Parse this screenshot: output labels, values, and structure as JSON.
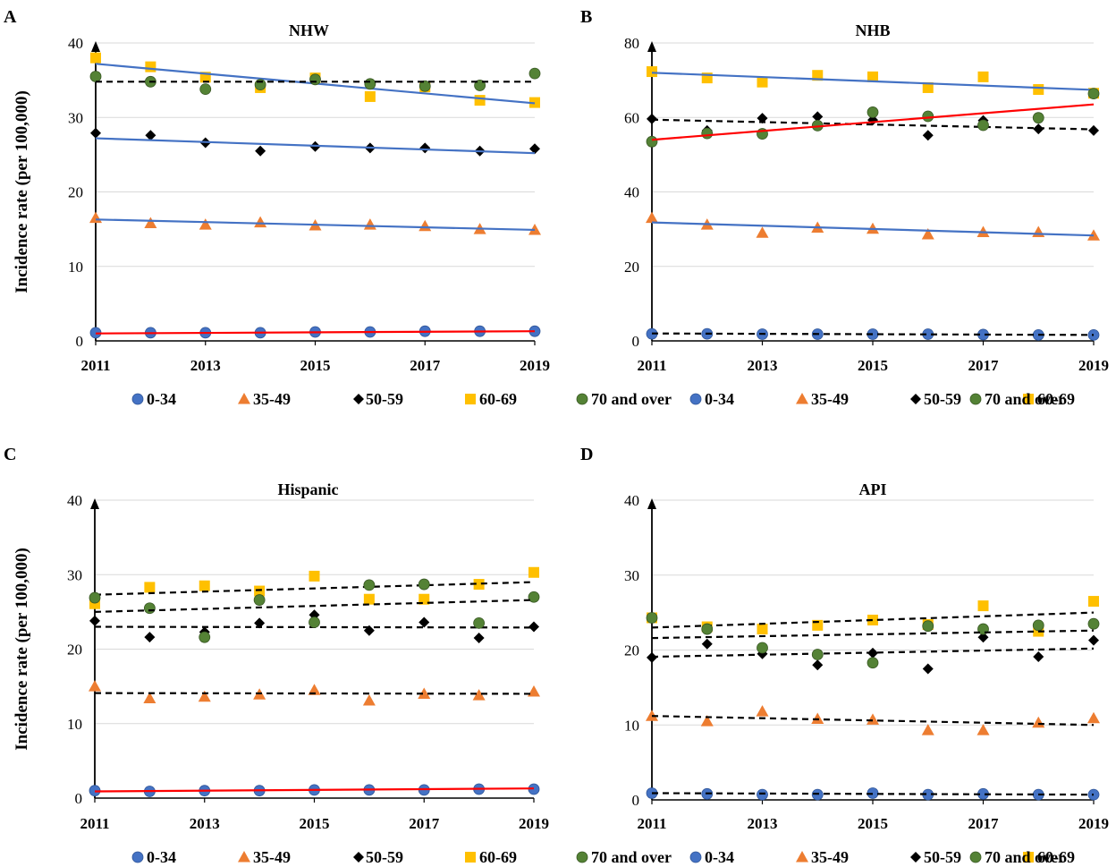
{
  "figure": {
    "legend": [
      {
        "key": "age_0_34",
        "label": "0-34",
        "marker": "circle",
        "color": "#4472C4"
      },
      {
        "key": "age_35_49",
        "label": "35-49",
        "marker": "triangle",
        "color": "#ED7D31"
      },
      {
        "key": "age_50_59",
        "label": "50-59",
        "marker": "diamond",
        "color": "#000000"
      },
      {
        "key": "age_60_69",
        "label": "60-69",
        "marker": "square",
        "color": "#FFC000"
      },
      {
        "key": "age_70_over",
        "label": "70 and over",
        "marker": "circle",
        "color": "#548235"
      }
    ],
    "trend_colors": {
      "decreasing": "#4472C4",
      "increasing": "#FF0000",
      "nonsignificant": "#000000"
    }
  },
  "chart_data": [
    {
      "panel": "A",
      "title": "NHW",
      "type": "scatter",
      "ylabel": "Incidence rate (per 100,000)",
      "xlabel": "",
      "xlim": [
        2011,
        2019
      ],
      "ylim": [
        0,
        40
      ],
      "xticks": [
        "2011",
        "2013",
        "2015",
        "2017",
        "2019"
      ],
      "yticks": [
        "0",
        "10",
        "20",
        "30",
        "40"
      ],
      "x": [
        2011,
        2012,
        2013,
        2014,
        2015,
        2016,
        2017,
        2018,
        2019
      ],
      "series": [
        {
          "name": "0-34",
          "values": [
            1.1,
            1.1,
            1.1,
            1.1,
            1.2,
            1.2,
            1.3,
            1.3,
            1.3
          ],
          "trend": [
            1.0,
            1.3
          ],
          "trend_type": "increasing"
        },
        {
          "name": "35-49",
          "values": [
            16.5,
            15.8,
            15.6,
            15.9,
            15.5,
            15.6,
            15.4,
            15.0,
            14.9
          ],
          "trend": [
            16.3,
            14.9
          ],
          "trend_type": "decreasing"
        },
        {
          "name": "50-59",
          "values": [
            27.9,
            27.6,
            26.6,
            25.5,
            26.1,
            25.9,
            25.9,
            25.5,
            25.8
          ],
          "trend": [
            27.2,
            25.2
          ],
          "trend_type": "decreasing"
        },
        {
          "name": "60-69",
          "values": [
            38.0,
            36.8,
            35.4,
            34.0,
            35.3,
            32.8,
            34.1,
            32.3,
            32.0
          ],
          "trend": [
            37.2,
            31.9
          ],
          "trend_type": "decreasing"
        },
        {
          "name": "70 and over",
          "values": [
            35.5,
            34.8,
            33.8,
            34.4,
            35.1,
            34.5,
            34.2,
            34.3,
            35.9
          ],
          "trend": [
            34.8,
            34.8
          ],
          "trend_type": "nonsignificant"
        }
      ]
    },
    {
      "panel": "B",
      "title": "NHB",
      "type": "scatter",
      "ylabel": "",
      "xlabel": "",
      "xlim": [
        2011,
        2019
      ],
      "ylim": [
        0,
        80
      ],
      "xticks": [
        "2011",
        "2013",
        "2015",
        "2017",
        "2019"
      ],
      "yticks": [
        "0",
        "20",
        "40",
        "60",
        "80"
      ],
      "x": [
        2011,
        2012,
        2013,
        2014,
        2015,
        2016,
        2017,
        2018,
        2019
      ],
      "series": [
        {
          "name": "0-34",
          "values": [
            1.9,
            1.9,
            1.8,
            1.8,
            1.8,
            1.8,
            1.7,
            1.6,
            1.6
          ],
          "trend": [
            2.0,
            1.6
          ],
          "trend_type": "nonsignificant"
        },
        {
          "name": "35-49",
          "values": [
            33.0,
            31.2,
            29.0,
            30.4,
            30.1,
            28.6,
            29.2,
            29.2,
            28.3
          ],
          "trend": [
            31.8,
            28.3
          ],
          "trend_type": "decreasing"
        },
        {
          "name": "50-59",
          "values": [
            59.6,
            56.5,
            59.8,
            60.2,
            59.3,
            55.2,
            59.2,
            56.9,
            56.5
          ],
          "trend": [
            59.4,
            56.8
          ],
          "trend_type": "nonsignificant"
        },
        {
          "name": "60-69",
          "values": [
            72.3,
            70.6,
            69.5,
            71.3,
            70.9,
            68.0,
            70.9,
            67.5,
            66.5
          ],
          "trend": [
            72.0,
            67.4
          ],
          "trend_type": "decreasing"
        },
        {
          "name": "70 and over",
          "values": [
            53.5,
            55.7,
            55.6,
            57.8,
            61.4,
            60.3,
            57.9,
            59.9,
            66.4
          ],
          "trend": [
            54.0,
            63.5
          ],
          "trend_type": "increasing"
        }
      ]
    },
    {
      "panel": "C",
      "title": "Hispanic",
      "type": "scatter",
      "ylabel": "Incidence rate (per 100,000)",
      "xlabel": "",
      "xlim": [
        2011,
        2019
      ],
      "ylim": [
        0,
        40
      ],
      "xticks": [
        "2011",
        "2013",
        "2015",
        "2017",
        "2019"
      ],
      "yticks": [
        "0",
        "10",
        "20",
        "30",
        "40"
      ],
      "x": [
        2011,
        2012,
        2013,
        2014,
        2015,
        2016,
        2017,
        2018,
        2019
      ],
      "series": [
        {
          "name": "0-34",
          "values": [
            1.0,
            0.9,
            1.0,
            1.0,
            1.1,
            1.1,
            1.1,
            1.2,
            1.2
          ],
          "trend": [
            0.9,
            1.3
          ],
          "trend_type": "increasing"
        },
        {
          "name": "35-49",
          "values": [
            15.0,
            13.4,
            13.6,
            13.9,
            14.5,
            13.1,
            14.0,
            13.8,
            14.3
          ],
          "trend": [
            14.1,
            14.0
          ],
          "trend_type": "nonsignificant"
        },
        {
          "name": "50-59",
          "values": [
            23.8,
            21.6,
            22.3,
            23.5,
            24.6,
            22.5,
            23.6,
            21.5,
            23.0
          ],
          "trend": [
            23.0,
            22.9
          ],
          "trend_type": "nonsignificant"
        },
        {
          "name": "60-69",
          "values": [
            26.1,
            28.3,
            28.5,
            27.8,
            29.8,
            26.7,
            26.7,
            28.7,
            30.3
          ],
          "trend": [
            27.3,
            29.0
          ],
          "trend_type": "nonsignificant"
        },
        {
          "name": "70 and over",
          "values": [
            26.9,
            25.5,
            21.6,
            26.6,
            23.6,
            28.6,
            28.7,
            23.5,
            27.0
          ],
          "trend": [
            25.0,
            26.6
          ],
          "trend_type": "nonsignificant"
        }
      ]
    },
    {
      "panel": "D",
      "title": "API",
      "type": "scatter",
      "ylabel": "",
      "xlabel": "",
      "xlim": [
        2011,
        2019
      ],
      "ylim": [
        0,
        40
      ],
      "xticks": [
        "2011",
        "2013",
        "2015",
        "2017",
        "2019"
      ],
      "yticks": [
        "0",
        "10",
        "20",
        "30",
        "40"
      ],
      "x": [
        2011,
        2012,
        2013,
        2014,
        2015,
        2016,
        2017,
        2018,
        2019
      ],
      "series": [
        {
          "name": "0-34",
          "values": [
            0.9,
            0.8,
            0.7,
            0.7,
            0.9,
            0.7,
            0.8,
            0.7,
            0.7
          ],
          "trend": [
            0.9,
            0.7
          ],
          "trend_type": "nonsignificant"
        },
        {
          "name": "35-49",
          "values": [
            11.2,
            10.5,
            11.8,
            10.8,
            10.7,
            9.3,
            9.3,
            10.3,
            10.9
          ],
          "trend": [
            11.2,
            10.0
          ],
          "trend_type": "nonsignificant"
        },
        {
          "name": "50-59",
          "values": [
            19.0,
            20.8,
            19.5,
            18.0,
            19.6,
            17.5,
            21.7,
            19.1,
            21.3
          ],
          "trend": [
            19.1,
            20.2
          ],
          "trend_type": "nonsignificant"
        },
        {
          "name": "60-69",
          "values": [
            24.3,
            23.1,
            22.8,
            23.3,
            24.0,
            23.4,
            25.9,
            22.5,
            26.5
          ],
          "trend": [
            23.0,
            25.0
          ],
          "trend_type": "nonsignificant"
        },
        {
          "name": "70 and over",
          "values": [
            24.3,
            22.8,
            20.3,
            19.4,
            18.3,
            23.2,
            22.8,
            23.3,
            23.5
          ],
          "trend": [
            21.6,
            22.6
          ],
          "trend_type": "nonsignificant"
        }
      ]
    }
  ]
}
